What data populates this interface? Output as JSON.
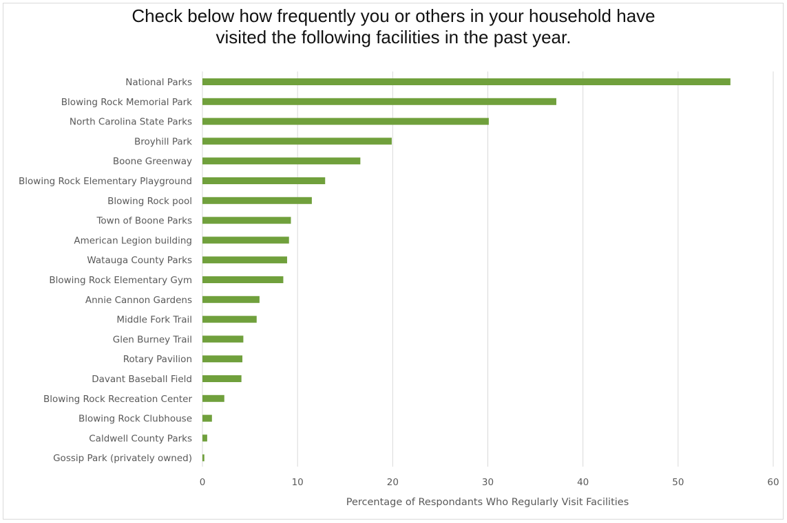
{
  "chart_data": {
    "type": "bar",
    "orientation": "horizontal",
    "title_lines": [
      "Check below how frequently you or others in your household have",
      "visited the following facilities in the past year."
    ],
    "categories": [
      "National Parks",
      "Blowing Rock Memorial Park",
      "North Carolina State Parks",
      "Broyhill Park",
      "Boone Greenway",
      "Blowing Rock Elementary Playground",
      "Blowing Rock pool",
      "Town of Boone Parks",
      "American Legion building",
      "Watauga County Parks",
      "Blowing Rock Elementary Gym",
      "Annie Cannon Gardens",
      "Middle Fork Trail",
      "Glen Burney Trail",
      "Rotary Pavilion",
      "Davant Baseball Field",
      "Blowing Rock Recreation Center",
      "Blowing Rock Clubhouse",
      "Caldwell County Parks",
      "Gossip Park (privately owned)"
    ],
    "values": [
      55.5,
      37.2,
      30.1,
      19.9,
      16.6,
      12.9,
      11.5,
      9.3,
      9.1,
      8.9,
      8.5,
      6.0,
      5.7,
      4.3,
      4.2,
      4.1,
      2.3,
      1.0,
      0.5,
      0.2
    ],
    "xlabel": "Percentage of Respondants Who Regularly Visit Facilities",
    "ylabel": "",
    "xlim": [
      0,
      60
    ],
    "xticks": [
      0,
      10,
      20,
      30,
      40,
      50,
      60
    ],
    "grid": "vertical",
    "legend": "none",
    "bar_color": "#70a03c",
    "grid_color": "#d9d9d9"
  }
}
